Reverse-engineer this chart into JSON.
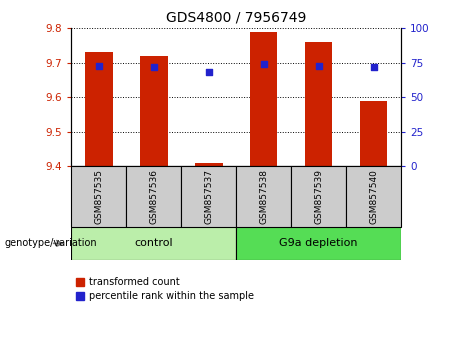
{
  "title": "GDS4800 / 7956749",
  "samples": [
    "GSM857535",
    "GSM857536",
    "GSM857537",
    "GSM857538",
    "GSM857539",
    "GSM857540"
  ],
  "bar_values": [
    9.73,
    9.72,
    9.41,
    9.79,
    9.76,
    9.59
  ],
  "percentile_values": [
    73,
    72,
    68,
    74,
    73,
    72
  ],
  "ylim_left": [
    9.4,
    9.8
  ],
  "ylim_right": [
    0,
    100
  ],
  "yticks_left": [
    9.4,
    9.5,
    9.6,
    9.7,
    9.8
  ],
  "yticks_right": [
    0,
    25,
    50,
    75,
    100
  ],
  "bar_color": "#cc2200",
  "dot_color": "#2222cc",
  "control_label": "control",
  "depletion_label": "G9a depletion",
  "control_indices": [
    0,
    1,
    2
  ],
  "depletion_indices": [
    3,
    4,
    5
  ],
  "control_bg": "#bbeeaa",
  "depletion_bg": "#55dd55",
  "sample_bg": "#cccccc",
  "legend_bar_label": "transformed count",
  "legend_dot_label": "percentile rank within the sample",
  "genotype_label": "genotype/variation",
  "bar_width": 0.5,
  "dot_size": 25,
  "title_fontsize": 10,
  "tick_fontsize": 7.5,
  "sample_fontsize": 6.5,
  "group_fontsize": 8,
  "legend_fontsize": 7
}
